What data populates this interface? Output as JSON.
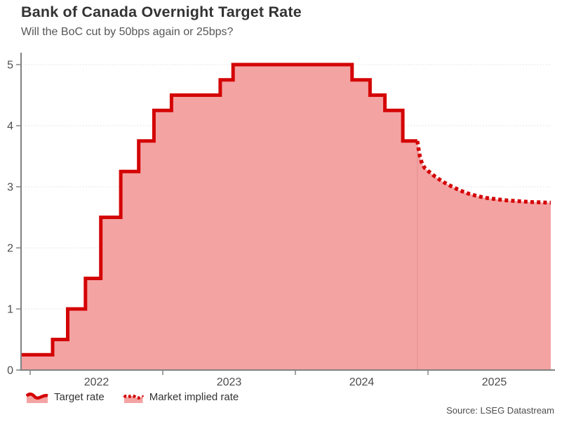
{
  "title": "Bank of Canada Overnight Target Rate",
  "subtitle": "Will the BoC cut by 50bps again or 25bps?",
  "source": "Source: LSEG Datastream",
  "legend": {
    "items": [
      {
        "label": "Target rate",
        "style": "solid"
      },
      {
        "label": "Market implied rate",
        "style": "dotted"
      }
    ]
  },
  "colors": {
    "line_red": "#d40404",
    "area_pink": "#f4a3a3",
    "axis_gray": "#828282",
    "grid_gray": "#dcdcdc",
    "title_gray": "#333333",
    "tick_gray": "#4d4d4d"
  },
  "chart_data": {
    "type": "line",
    "title": "Bank of Canada Overnight Target Rate",
    "subtitle": "Will the BoC cut by 50bps again or 25bps?",
    "xlabel": "",
    "ylabel": "",
    "ylim": [
      0,
      5
    ],
    "yticks": [
      0,
      1,
      2,
      3,
      4,
      5
    ],
    "xticks": [
      "2022",
      "2023",
      "2024",
      "2025"
    ],
    "x_range": [
      "2021-12-06",
      "2025-12-01"
    ],
    "grid": "horizontal-dotted",
    "legend_position": "bottom-left",
    "series": [
      {
        "name": "Target rate",
        "type": "step-area",
        "line": "solid",
        "points": [
          [
            "2021-12-06",
            0.25
          ],
          [
            "2022-03-02",
            0.5
          ],
          [
            "2022-04-13",
            1.0
          ],
          [
            "2022-06-01",
            1.5
          ],
          [
            "2022-07-13",
            2.5
          ],
          [
            "2022-09-07",
            3.25
          ],
          [
            "2022-10-26",
            3.75
          ],
          [
            "2022-12-07",
            4.25
          ],
          [
            "2023-01-25",
            4.5
          ],
          [
            "2023-06-07",
            4.75
          ],
          [
            "2023-07-12",
            5.0
          ],
          [
            "2024-06-05",
            4.75
          ],
          [
            "2024-07-24",
            4.5
          ],
          [
            "2024-09-04",
            4.25
          ],
          [
            "2024-10-23",
            3.75
          ],
          [
            "2024-12-02",
            3.75
          ]
        ]
      },
      {
        "name": "Market implied rate",
        "type": "area",
        "line": "dotted",
        "points": [
          [
            "2024-12-02",
            3.75
          ],
          [
            "2024-12-05",
            3.64
          ],
          [
            "2024-12-09",
            3.5
          ],
          [
            "2024-12-15",
            3.38
          ],
          [
            "2024-12-22",
            3.31
          ],
          [
            "2025-01-01",
            3.26
          ],
          [
            "2025-01-20",
            3.17
          ],
          [
            "2025-02-12",
            3.08
          ],
          [
            "2025-03-07",
            3.0
          ],
          [
            "2025-03-28",
            2.94
          ],
          [
            "2025-04-20",
            2.89
          ],
          [
            "2025-05-13",
            2.85
          ],
          [
            "2025-06-07",
            2.82
          ],
          [
            "2025-07-02",
            2.8
          ],
          [
            "2025-07-29",
            2.78
          ],
          [
            "2025-08-23",
            2.77
          ],
          [
            "2025-09-17",
            2.76
          ],
          [
            "2025-10-14",
            2.75
          ],
          [
            "2025-11-08",
            2.745
          ],
          [
            "2025-11-29",
            2.74
          ]
        ]
      }
    ]
  }
}
